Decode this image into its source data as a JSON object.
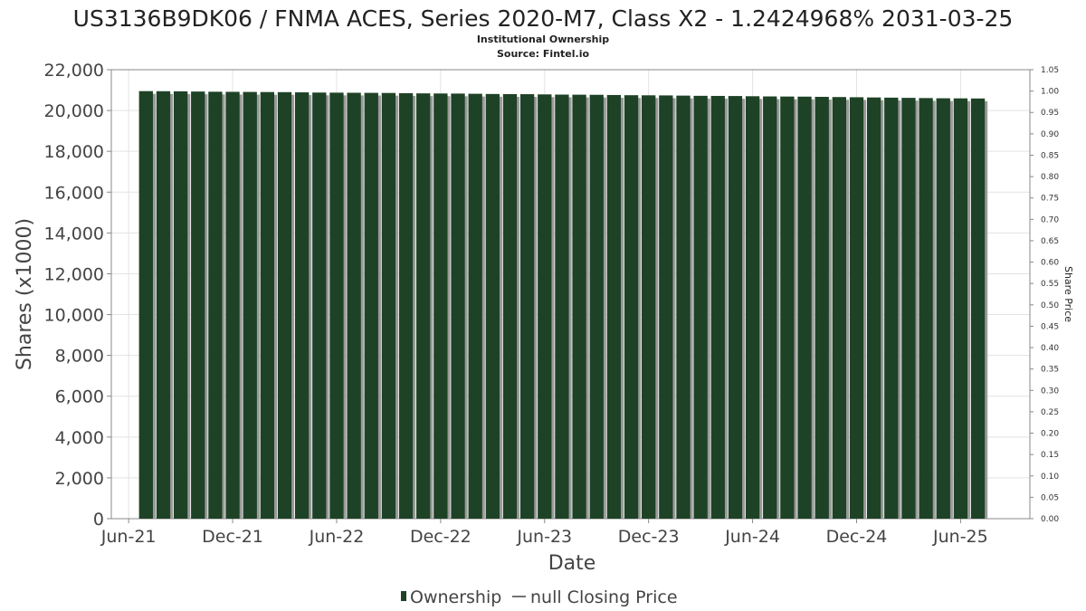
{
  "chart_data": {
    "type": "bar",
    "title": "US3136B9DK06 / FNMA ACES, Series 2020-M7, Class X2 - 1.2424968% 2031-03-25",
    "subtitle": [
      "Institutional Ownership",
      "Source: Fintel.io"
    ],
    "xlabel": "Date",
    "ylabel": "Shares (x1000)",
    "y2label": "Share Price",
    "ylim": [
      0,
      22000
    ],
    "y2lim": [
      0,
      1.05
    ],
    "yticks": [
      "0",
      "2,000",
      "4,000",
      "6,000",
      "8,000",
      "10,000",
      "12,000",
      "14,000",
      "16,000",
      "18,000",
      "20,000",
      "22,000"
    ],
    "y2ticks": [
      "0.00",
      "0.05",
      "0.10",
      "0.15",
      "0.20",
      "0.25",
      "0.30",
      "0.35",
      "0.40",
      "0.45",
      "0.50",
      "0.55",
      "0.60",
      "0.65",
      "0.70",
      "0.75",
      "0.80",
      "0.85",
      "0.90",
      "0.95",
      "1.00",
      "1.05"
    ],
    "xticks": [
      "Jun-21",
      "Dec-21",
      "Jun-22",
      "Dec-22",
      "Jun-23",
      "Dec-23",
      "Jun-24",
      "Dec-24",
      "Jun-25"
    ],
    "x_start": "2021-05",
    "x_end": "2025-10",
    "grid": true,
    "legend_position": "bottom",
    "legend": [
      "Ownership",
      "null Closing Price"
    ],
    "bar_color": "#1e4226",
    "shadow_color": "#9a9a9a",
    "series": [
      {
        "name": "Ownership",
        "x": [
          "2021-07",
          "2021-08",
          "2021-09",
          "2021-10",
          "2021-11",
          "2021-12",
          "2022-01",
          "2022-02",
          "2022-03",
          "2022-04",
          "2022-05",
          "2022-06",
          "2022-07",
          "2022-08",
          "2022-09",
          "2022-10",
          "2022-11",
          "2022-12",
          "2023-01",
          "2023-02",
          "2023-03",
          "2023-04",
          "2023-05",
          "2023-06",
          "2023-07",
          "2023-08",
          "2023-09",
          "2023-10",
          "2023-11",
          "2023-12",
          "2024-01",
          "2024-02",
          "2024-03",
          "2024-04",
          "2024-05",
          "2024-06",
          "2024-07",
          "2024-08",
          "2024-09",
          "2024-10",
          "2024-11",
          "2024-12",
          "2025-01",
          "2025-02",
          "2025-03",
          "2025-04",
          "2025-05",
          "2025-06",
          "2025-07"
        ],
        "values": [
          20950,
          20945,
          20940,
          20930,
          20920,
          20915,
          20910,
          20905,
          20900,
          20890,
          20880,
          20875,
          20870,
          20865,
          20860,
          20850,
          20840,
          20835,
          20830,
          20820,
          20810,
          20805,
          20800,
          20790,
          20780,
          20775,
          20770,
          20760,
          20750,
          20745,
          20740,
          20730,
          20720,
          20715,
          20710,
          20700,
          20690,
          20685,
          20680,
          20670,
          20660,
          20650,
          20640,
          20630,
          20620,
          20610,
          20600,
          20595,
          20590
        ]
      }
    ]
  }
}
